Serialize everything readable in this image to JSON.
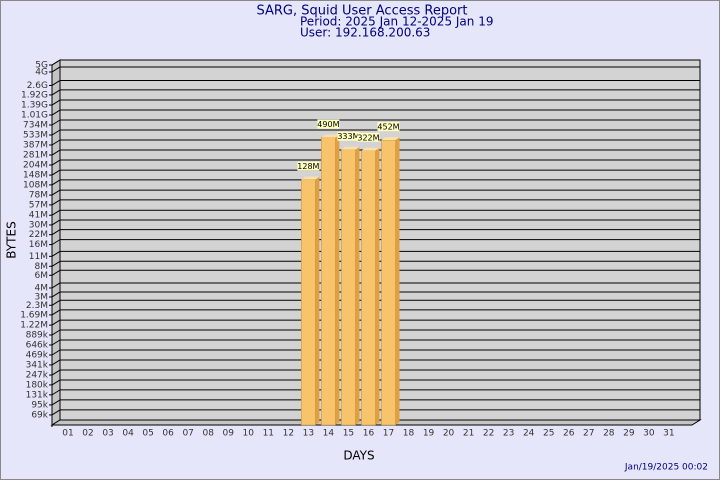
{
  "chart_data": {
    "type": "bar",
    "title": "SARG, Squid User Access Report",
    "subtitle": "Period: 2025 Jan 12-2025 Jan 19",
    "user": "User: 192.168.200.63",
    "x_label": "DAYS",
    "y_label": "BYTES",
    "timestamp": "Jan/19/2025 00:02",
    "log_scale": true,
    "grid": true,
    "color": "#f7c46c",
    "categories": [
      "01",
      "02",
      "03",
      "04",
      "05",
      "06",
      "07",
      "08",
      "09",
      "10",
      "11",
      "12",
      "13",
      "14",
      "15",
      "16",
      "17",
      "18",
      "19",
      "20",
      "21",
      "22",
      "23",
      "24",
      "25",
      "26",
      "27",
      "28",
      "29",
      "30",
      "31"
    ],
    "values": [
      null,
      null,
      null,
      null,
      null,
      null,
      null,
      null,
      null,
      null,
      null,
      null,
      128000000,
      490000000,
      333000000,
      322000000,
      452000000,
      null,
      null,
      null,
      null,
      null,
      null,
      null,
      null,
      null,
      null,
      null,
      null,
      null,
      null
    ],
    "value_labels": [
      null,
      null,
      null,
      null,
      null,
      null,
      null,
      null,
      null,
      null,
      null,
      null,
      "128M",
      "490M",
      "333M",
      "322M",
      "452M",
      null,
      null,
      null,
      null,
      null,
      null,
      null,
      null,
      null,
      null,
      null,
      null,
      null,
      null
    ],
    "ylim": [
      50000,
      5000000000
    ],
    "yticks": [
      {
        "value": 5000000000,
        "label": "5G"
      },
      {
        "value": 4000000000,
        "label": "4G"
      },
      {
        "value": 2600000000,
        "label": "2.6G"
      },
      {
        "value": 1920000000,
        "label": "1.92G"
      },
      {
        "value": 1390000000,
        "label": "1.39G"
      },
      {
        "value": 1010000000,
        "label": "1.01G"
      },
      {
        "value": 734000000,
        "label": "734M"
      },
      {
        "value": 533000000,
        "label": "533M"
      },
      {
        "value": 387000000,
        "label": "387M"
      },
      {
        "value": 281000000,
        "label": "281M"
      },
      {
        "value": 204000000,
        "label": "204M"
      },
      {
        "value": 148000000,
        "label": "148M"
      },
      {
        "value": 108000000,
        "label": "108M"
      },
      {
        "value": 78000000,
        "label": "78M"
      },
      {
        "value": 57000000,
        "label": "57M"
      },
      {
        "value": 41000000,
        "label": "41M"
      },
      {
        "value": 30000000,
        "label": "30M"
      },
      {
        "value": 22000000,
        "label": "22M"
      },
      {
        "value": 16000000,
        "label": "16M"
      },
      {
        "value": 11000000,
        "label": "11M"
      },
      {
        "value": 8000000,
        "label": "8M"
      },
      {
        "value": 6000000,
        "label": "6M"
      },
      {
        "value": 4000000,
        "label": "4M"
      },
      {
        "value": 3000000,
        "label": "3M"
      },
      {
        "value": 2300000,
        "label": "2.3M"
      },
      {
        "value": 1690000,
        "label": "1.69M"
      },
      {
        "value": 1220000,
        "label": "1.22M"
      },
      {
        "value": 889000,
        "label": "889k"
      },
      {
        "value": 646000,
        "label": "646k"
      },
      {
        "value": 469000,
        "label": "469k"
      },
      {
        "value": 341000,
        "label": "341k"
      },
      {
        "value": 247000,
        "label": "247k"
      },
      {
        "value": 180000,
        "label": "180k"
      },
      {
        "value": 131000,
        "label": "131k"
      },
      {
        "value": 95000,
        "label": "95k"
      },
      {
        "value": 69000,
        "label": "69k"
      }
    ]
  }
}
